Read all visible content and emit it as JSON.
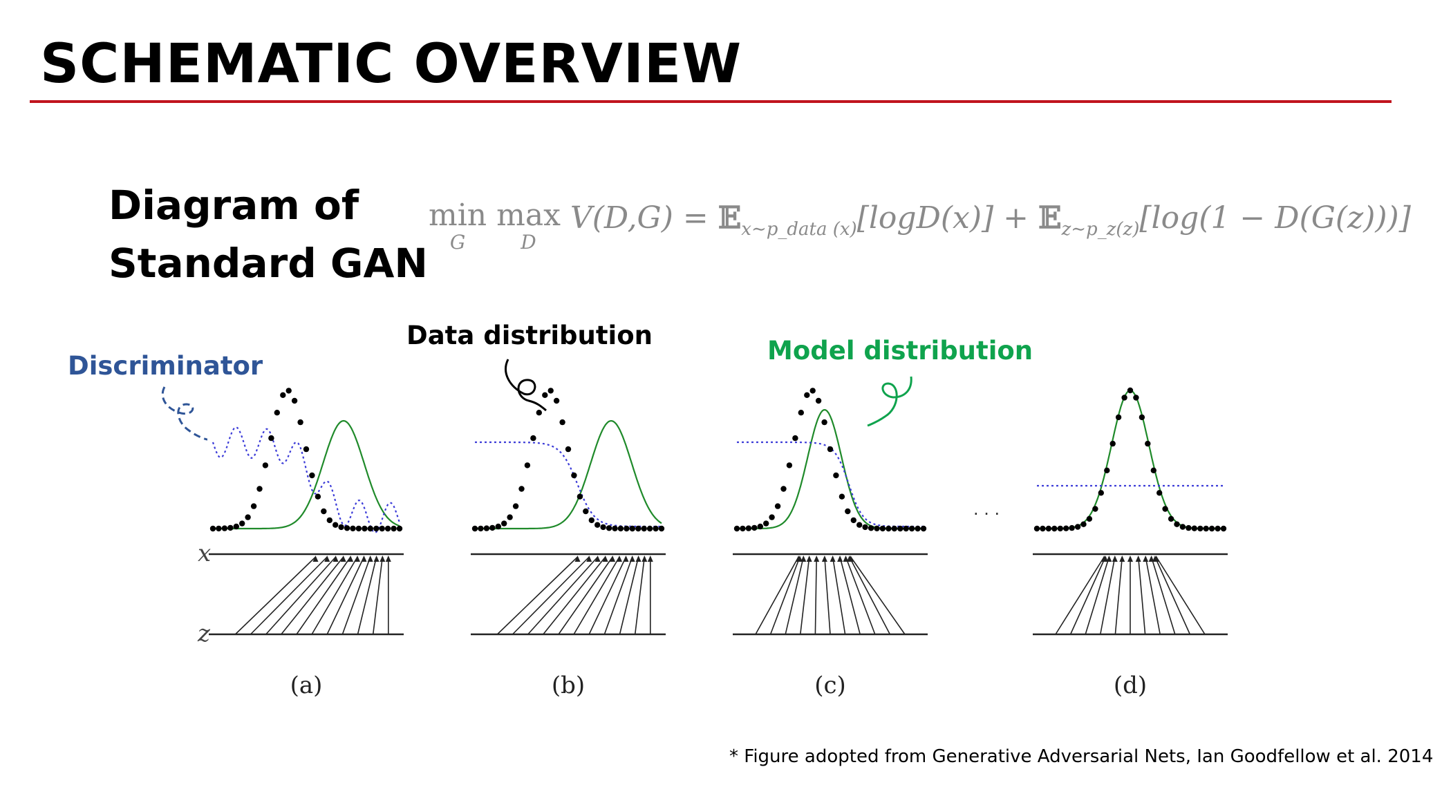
{
  "slide": {
    "title": "SCHEMATIC OVERVIEW",
    "subtitle_line1": "Diagram of",
    "subtitle_line2": "Standard GAN",
    "citation": "* Figure adopted from Generative Adversarial Nets, Ian Goodfellow et al. 2014"
  },
  "formula": {
    "min": "min",
    "min_sub": "G",
    "max": "max",
    "max_sub": "D",
    "lhs": "V(D,G) =",
    "e1": "𝔼",
    "e1_sub": "x∼p_data (x)",
    "t1": "[logD(x)] +",
    "e2": "𝔼",
    "e2_sub": "z∼p_z(z)",
    "t2": "[log(1 − D(G(z)))]"
  },
  "annotations": {
    "discriminator": "Discriminator",
    "data_distribution": "Data distribution",
    "model_distribution": "Model distribution"
  },
  "figure": {
    "x_label": "x",
    "z_label": "z",
    "ellipsis": "· · ·",
    "panels": [
      {
        "id": "a",
        "label": "(a)"
      },
      {
        "id": "b",
        "label": "(b)"
      },
      {
        "id": "c",
        "label": "(c)"
      },
      {
        "id": "d",
        "label": "(d)"
      }
    ]
  },
  "colors": {
    "title_rule": "#c0141e",
    "discriminator": "#2f5597",
    "discriminator_curve": "#3b3bd8",
    "model": "#0fa34d",
    "model_curve": "#1f8a2a",
    "data": "#000000",
    "formula": "#8a8a8a"
  }
}
